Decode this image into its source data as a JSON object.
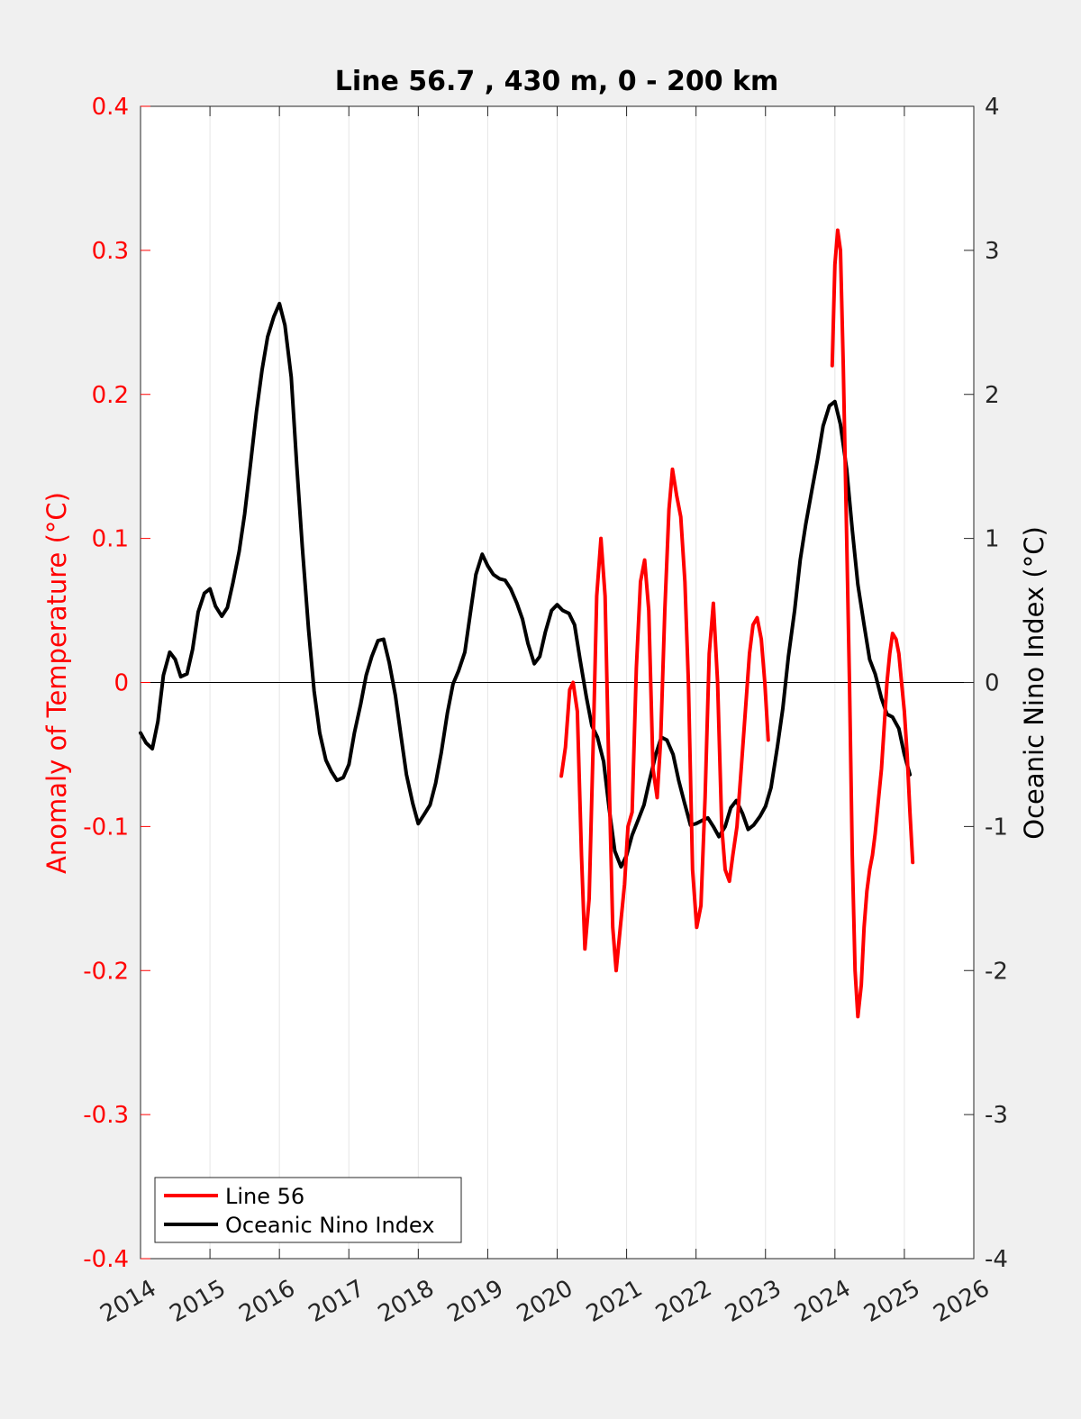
{
  "chart_data": {
    "type": "line",
    "title": "Line 56.7 , 430 m, 0 - 200 km",
    "xlabel": "",
    "ylabel_left": "Anomaly of Temperature (°C)",
    "ylabel_right": "Oceanic Nino Index (°C)",
    "xlim": [
      2014,
      2026
    ],
    "ylim_left": [
      -0.4,
      0.4
    ],
    "ylim_right": [
      -4,
      4
    ],
    "x_ticks": [
      "2014",
      "2015",
      "2016",
      "2017",
      "2018",
      "2019",
      "2020",
      "2021",
      "2022",
      "2023",
      "2024",
      "2025",
      "2026"
    ],
    "y_ticks_left": [
      "-0.4",
      "-0.3",
      "-0.2",
      "-0.1",
      "0",
      "0.1",
      "0.2",
      "0.3",
      "0.4"
    ],
    "y_ticks_right": [
      "-4",
      "-3",
      "-2",
      "-1",
      "0",
      "1",
      "2",
      "3",
      "4"
    ],
    "grid": "vertical",
    "zero_line": true,
    "legend_position": "bottom-left",
    "colors": {
      "line56": "#ff0000",
      "oni": "#000000",
      "left_axis": "#ff0000",
      "right_axis": "#000000",
      "background": "#f0f0f0",
      "plot_background": "#ffffff"
    },
    "series": [
      {
        "name": "Line 56",
        "axis": "left",
        "segments": [
          {
            "x": [
              2020.06,
              2020.12,
              2020.18,
              2020.23,
              2020.29,
              2020.35,
              2020.4,
              2020.46,
              2020.52,
              2020.57,
              2020.63,
              2020.69,
              2020.74,
              2020.8,
              2020.85,
              2020.91,
              2020.97,
              2021.02,
              2021.08,
              2021.14,
              2021.2,
              2021.26,
              2021.32,
              2021.38,
              2021.44,
              2021.49,
              2021.55,
              2021.61,
              2021.66,
              2021.72,
              2021.78,
              2021.84,
              2021.89,
              2021.95,
              2022.01,
              2022.07,
              2022.13,
              2022.19,
              2022.25,
              2022.31,
              2022.37,
              2022.42,
              2022.48,
              2022.53,
              2022.59,
              2022.65,
              2022.71,
              2022.77,
              2022.82,
              2022.88,
              2022.94,
              2022.99,
              2023.04
            ],
            "y": [
              -0.065,
              -0.045,
              -0.005,
              0.0,
              -0.02,
              -0.12,
              -0.185,
              -0.15,
              -0.04,
              0.06,
              0.1,
              0.06,
              -0.05,
              -0.17,
              -0.2,
              -0.17,
              -0.14,
              -0.1,
              -0.09,
              0.01,
              0.07,
              0.085,
              0.05,
              -0.06,
              -0.08,
              -0.04,
              0.05,
              0.12,
              0.148,
              0.13,
              0.115,
              0.07,
              0.0,
              -0.13,
              -0.17,
              -0.155,
              -0.08,
              0.02,
              0.055,
              0.0,
              -0.1,
              -0.13,
              -0.138,
              -0.12,
              -0.1,
              -0.06,
              -0.02,
              0.02,
              0.04,
              0.045,
              0.03,
              0.0,
              -0.04
            ]
          },
          {
            "x": [
              2023.96,
              2024.0,
              2024.04,
              2024.08,
              2024.12,
              2024.17,
              2024.21,
              2024.25,
              2024.29,
              2024.33,
              2024.38,
              2024.42,
              2024.46,
              2024.5,
              2024.54,
              2024.58,
              2024.62,
              2024.67,
              2024.71,
              2024.75,
              2024.79,
              2024.83,
              2024.88,
              2024.92,
              2024.96,
              2025.0,
              2025.04,
              2025.08,
              2025.12
            ],
            "y": [
              0.22,
              0.29,
              0.314,
              0.3,
              0.22,
              0.1,
              0.0,
              -0.12,
              -0.2,
              -0.232,
              -0.21,
              -0.17,
              -0.145,
              -0.13,
              -0.12,
              -0.105,
              -0.085,
              -0.06,
              -0.03,
              0.0,
              0.02,
              0.034,
              0.03,
              0.02,
              0.0,
              -0.02,
              -0.05,
              -0.09,
              -0.125
            ]
          }
        ]
      },
      {
        "name": "Oceanic Nino Index",
        "axis": "right",
        "x": [
          2014.0,
          2014.08,
          2014.17,
          2014.25,
          2014.33,
          2014.42,
          2014.5,
          2014.58,
          2014.67,
          2014.75,
          2014.83,
          2014.92,
          2015.0,
          2015.08,
          2015.17,
          2015.25,
          2015.33,
          2015.42,
          2015.5,
          2015.58,
          2015.67,
          2015.75,
          2015.83,
          2015.92,
          2016.0,
          2016.08,
          2016.17,
          2016.25,
          2016.33,
          2016.42,
          2016.5,
          2016.58,
          2016.67,
          2016.75,
          2016.83,
          2016.92,
          2017.0,
          2017.08,
          2017.17,
          2017.25,
          2017.33,
          2017.42,
          2017.5,
          2017.58,
          2017.67,
          2017.75,
          2017.83,
          2017.92,
          2018.0,
          2018.08,
          2018.17,
          2018.25,
          2018.33,
          2018.42,
          2018.5,
          2018.58,
          2018.67,
          2018.75,
          2018.83,
          2018.92,
          2019.0,
          2019.08,
          2019.17,
          2019.25,
          2019.33,
          2019.42,
          2019.5,
          2019.58,
          2019.67,
          2019.75,
          2019.83,
          2019.92,
          2020.0,
          2020.08,
          2020.17,
          2020.25,
          2020.33,
          2020.42,
          2020.5,
          2020.58,
          2020.67,
          2020.75,
          2020.83,
          2020.92,
          2021.0,
          2021.08,
          2021.17,
          2021.25,
          2021.33,
          2021.42,
          2021.5,
          2021.58,
          2021.67,
          2021.75,
          2021.83,
          2021.92,
          2022.0,
          2022.08,
          2022.17,
          2022.25,
          2022.33,
          2022.42,
          2022.5,
          2022.58,
          2022.67,
          2022.75,
          2022.83,
          2022.92,
          2023.0,
          2023.08,
          2023.17,
          2023.25,
          2023.33,
          2023.42,
          2023.5,
          2023.58,
          2023.67,
          2023.75,
          2023.83,
          2023.92,
          2024.0,
          2024.08,
          2024.17,
          2024.25,
          2024.33,
          2024.42,
          2024.5,
          2024.58,
          2024.67,
          2024.75,
          2024.83,
          2024.92,
          2025.0,
          2025.08
        ],
        "y": [
          -0.35,
          -0.42,
          -0.46,
          -0.27,
          0.05,
          0.21,
          0.16,
          0.04,
          0.06,
          0.23,
          0.49,
          0.62,
          0.65,
          0.53,
          0.46,
          0.52,
          0.69,
          0.91,
          1.17,
          1.5,
          1.88,
          2.17,
          2.4,
          2.54,
          2.63,
          2.48,
          2.12,
          1.51,
          0.94,
          0.37,
          -0.06,
          -0.35,
          -0.54,
          -0.62,
          -0.68,
          -0.66,
          -0.57,
          -0.35,
          -0.15,
          0.05,
          0.18,
          0.29,
          0.3,
          0.14,
          -0.09,
          -0.37,
          -0.64,
          -0.84,
          -0.98,
          -0.92,
          -0.85,
          -0.7,
          -0.49,
          -0.21,
          -0.01,
          0.08,
          0.21,
          0.48,
          0.75,
          0.89,
          0.81,
          0.75,
          0.72,
          0.71,
          0.65,
          0.55,
          0.44,
          0.27,
          0.13,
          0.18,
          0.35,
          0.5,
          0.54,
          0.5,
          0.48,
          0.4,
          0.16,
          -0.1,
          -0.3,
          -0.38,
          -0.55,
          -0.88,
          -1.17,
          -1.28,
          -1.2,
          -1.06,
          -0.95,
          -0.85,
          -0.68,
          -0.5,
          -0.38,
          -0.4,
          -0.5,
          -0.68,
          -0.83,
          -0.99,
          -0.98,
          -0.96,
          -0.94,
          -1.0,
          -1.07,
          -1.0,
          -0.87,
          -0.82,
          -0.91,
          -1.02,
          -0.99,
          -0.93,
          -0.86,
          -0.73,
          -0.45,
          -0.18,
          0.18,
          0.5,
          0.85,
          1.1,
          1.34,
          1.55,
          1.78,
          1.92,
          1.95,
          1.79,
          1.48,
          1.06,
          0.68,
          0.4,
          0.16,
          0.06,
          -0.11,
          -0.22,
          -0.24,
          -0.32,
          -0.5,
          -0.64
        ]
      }
    ]
  },
  "legend": {
    "items": [
      {
        "label": "Line 56",
        "color": "#ff0000"
      },
      {
        "label": "Oceanic Nino Index",
        "color": "#000000"
      }
    ]
  }
}
